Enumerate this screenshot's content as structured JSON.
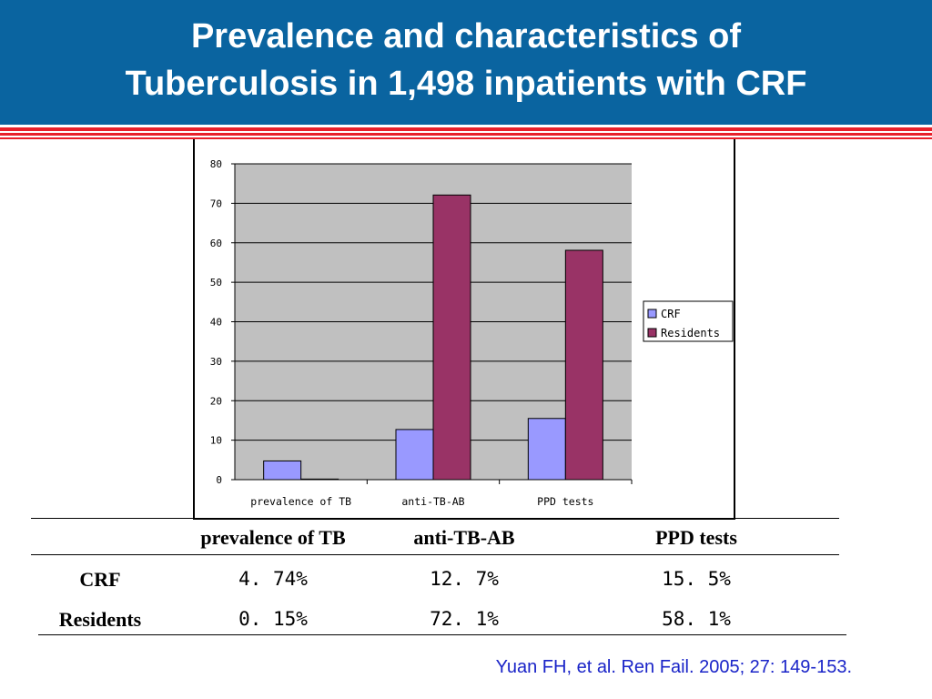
{
  "slide": {
    "title_line1": "Prevalence and characteristics of",
    "title_line2": "Tuberculosis in 1,498 inpatients with CRF",
    "citation": "Yuan FH, et al. Ren Fail. 2005; 27: 149-153."
  },
  "colors": {
    "header": "#0a64a0",
    "stripe_red": "#e8202a",
    "crf": "#9999ff",
    "residents": "#993366",
    "plot_bg": "#c0c0c0"
  },
  "chart_data": {
    "type": "bar",
    "categories": [
      "prevalence of TB",
      "anti-TB-AB",
      "PPD tests"
    ],
    "series": [
      {
        "name": "CRF",
        "values": [
          4.74,
          12.7,
          15.5
        ]
      },
      {
        "name": "Residents",
        "values": [
          0.15,
          72.1,
          58.1
        ]
      }
    ],
    "ylim": [
      0,
      80
    ],
    "yticks": [
      "0",
      "10",
      "20",
      "30",
      "40",
      "50",
      "60",
      "70",
      "80"
    ],
    "grid": true,
    "legend": "right"
  },
  "table": {
    "columns": [
      "prevalence of TB",
      "anti-TB-AB",
      "PPD tests"
    ],
    "rows": [
      {
        "label": "CRF",
        "values": [
          "4. 74%",
          "12. 7%",
          "15. 5%"
        ]
      },
      {
        "label": "Residents",
        "values": [
          "0. 15%",
          "72. 1%",
          "58. 1%"
        ]
      }
    ]
  }
}
